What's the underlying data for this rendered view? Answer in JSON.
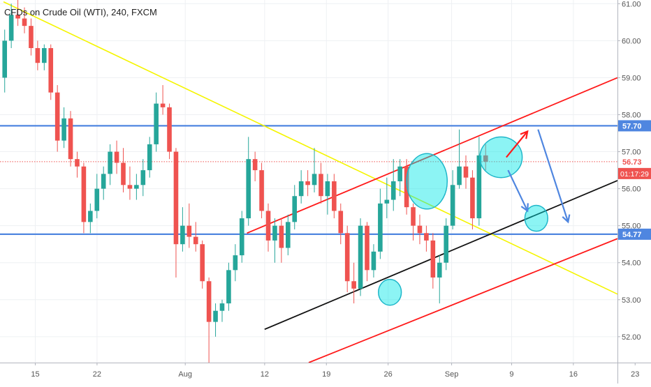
{
  "chart_data": {
    "type": "candlestick",
    "title": "CFDs on Crude Oil (WTI), 240, FXCM",
    "ylim": [
      51.3,
      61.1
    ],
    "xlim": [
      -2,
      33
    ],
    "y_ticks": [
      "52.00",
      "53.00",
      "54.00",
      "55.00",
      "56.00",
      "57.00",
      "58.00",
      "59.00",
      "60.00",
      "61.00"
    ],
    "y_tick_values": [
      52,
      53,
      54,
      55,
      56,
      57,
      58,
      59,
      60,
      61
    ],
    "x_ticks": [
      {
        "label": "15",
        "x": 0
      },
      {
        "label": "22",
        "x": 3.5
      },
      {
        "label": "Aug",
        "x": 8.5
      },
      {
        "label": "12",
        "x": 13
      },
      {
        "label": "19",
        "x": 16.5
      },
      {
        "label": "26",
        "x": 20
      },
      {
        "label": "Sep",
        "x": 23.6
      },
      {
        "label": "9",
        "x": 27
      },
      {
        "label": "16",
        "x": 30.5
      },
      {
        "label": "23",
        "x": 34
      }
    ],
    "last_price": {
      "value": 56.73,
      "label": "56.73",
      "countdown": "01:17:29"
    },
    "horizontal_levels": [
      {
        "value": 57.7,
        "label": "57.70"
      },
      {
        "value": 54.77,
        "label": "54.77"
      }
    ],
    "candles": [
      {
        "o": 59.0,
        "h": 60.3,
        "l": 58.6,
        "c": 60.0
      },
      {
        "o": 60.0,
        "h": 61.0,
        "l": 59.8,
        "c": 60.7
      },
      {
        "o": 60.7,
        "h": 61.1,
        "l": 60.4,
        "c": 60.6
      },
      {
        "o": 60.6,
        "h": 60.9,
        "l": 60.2,
        "c": 60.4
      },
      {
        "o": 60.4,
        "h": 60.6,
        "l": 59.6,
        "c": 59.8
      },
      {
        "o": 59.8,
        "h": 60.0,
        "l": 59.2,
        "c": 59.4
      },
      {
        "o": 59.4,
        "h": 59.9,
        "l": 59.2,
        "c": 59.8
      },
      {
        "o": 59.8,
        "h": 59.9,
        "l": 58.4,
        "c": 58.6
      },
      {
        "o": 58.6,
        "h": 58.8,
        "l": 57.0,
        "c": 57.3
      },
      {
        "o": 57.3,
        "h": 58.2,
        "l": 57.1,
        "c": 57.9
      },
      {
        "o": 57.9,
        "h": 58.1,
        "l": 56.6,
        "c": 56.8
      },
      {
        "o": 56.8,
        "h": 57.0,
        "l": 56.3,
        "c": 56.6
      },
      {
        "o": 56.6,
        "h": 56.7,
        "l": 54.8,
        "c": 55.1
      },
      {
        "o": 55.1,
        "h": 55.6,
        "l": 54.8,
        "c": 55.4
      },
      {
        "o": 55.4,
        "h": 56.4,
        "l": 55.2,
        "c": 56.0
      },
      {
        "o": 56.0,
        "h": 56.6,
        "l": 55.7,
        "c": 56.4
      },
      {
        "o": 56.4,
        "h": 57.2,
        "l": 56.1,
        "c": 57.0
      },
      {
        "o": 57.0,
        "h": 57.3,
        "l": 56.4,
        "c": 56.7
      },
      {
        "o": 56.7,
        "h": 57.1,
        "l": 55.9,
        "c": 56.1
      },
      {
        "o": 56.1,
        "h": 56.6,
        "l": 55.7,
        "c": 56.0
      },
      {
        "o": 56.0,
        "h": 56.4,
        "l": 55.7,
        "c": 56.1
      },
      {
        "o": 56.1,
        "h": 56.8,
        "l": 55.8,
        "c": 56.5
      },
      {
        "o": 56.5,
        "h": 57.4,
        "l": 56.3,
        "c": 57.2
      },
      {
        "o": 57.2,
        "h": 58.6,
        "l": 57.0,
        "c": 58.3
      },
      {
        "o": 58.3,
        "h": 58.8,
        "l": 58.0,
        "c": 58.2
      },
      {
        "o": 58.2,
        "h": 58.3,
        "l": 56.8,
        "c": 57.0
      },
      {
        "o": 57.0,
        "h": 57.1,
        "l": 53.6,
        "c": 54.5
      },
      {
        "o": 54.5,
        "h": 55.5,
        "l": 54.3,
        "c": 55.0
      },
      {
        "o": 55.0,
        "h": 55.6,
        "l": 54.4,
        "c": 54.7
      },
      {
        "o": 54.7,
        "h": 55.1,
        "l": 54.3,
        "c": 54.5
      },
      {
        "o": 54.5,
        "h": 54.6,
        "l": 53.3,
        "c": 53.5
      },
      {
        "o": 53.5,
        "h": 53.6,
        "l": 51.3,
        "c": 52.4
      },
      {
        "o": 52.4,
        "h": 52.9,
        "l": 52.0,
        "c": 52.7
      },
      {
        "o": 52.7,
        "h": 53.0,
        "l": 52.4,
        "c": 52.9
      },
      {
        "o": 52.9,
        "h": 54.0,
        "l": 52.7,
        "c": 53.8
      },
      {
        "o": 53.8,
        "h": 54.5,
        "l": 53.5,
        "c": 54.2
      },
      {
        "o": 54.2,
        "h": 55.4,
        "l": 54.0,
        "c": 55.2
      },
      {
        "o": 55.2,
        "h": 57.4,
        "l": 55.0,
        "c": 56.8
      },
      {
        "o": 56.8,
        "h": 57.0,
        "l": 56.2,
        "c": 56.5
      },
      {
        "o": 56.5,
        "h": 56.7,
        "l": 55.2,
        "c": 55.4
      },
      {
        "o": 55.4,
        "h": 55.6,
        "l": 54.3,
        "c": 54.6
      },
      {
        "o": 54.6,
        "h": 55.2,
        "l": 54.0,
        "c": 55.0
      },
      {
        "o": 55.0,
        "h": 55.2,
        "l": 54.0,
        "c": 54.4
      },
      {
        "o": 54.4,
        "h": 55.3,
        "l": 54.2,
        "c": 55.1
      },
      {
        "o": 55.1,
        "h": 56.1,
        "l": 54.9,
        "c": 55.8
      },
      {
        "o": 55.8,
        "h": 56.5,
        "l": 55.6,
        "c": 56.2
      },
      {
        "o": 56.2,
        "h": 56.5,
        "l": 55.8,
        "c": 56.1
      },
      {
        "o": 56.1,
        "h": 57.1,
        "l": 55.9,
        "c": 56.4
      },
      {
        "o": 56.4,
        "h": 56.7,
        "l": 55.6,
        "c": 55.8
      },
      {
        "o": 55.8,
        "h": 56.4,
        "l": 55.3,
        "c": 56.2
      },
      {
        "o": 56.2,
        "h": 56.4,
        "l": 55.2,
        "c": 55.4
      },
      {
        "o": 55.4,
        "h": 55.6,
        "l": 54.5,
        "c": 54.8
      },
      {
        "o": 54.8,
        "h": 55.0,
        "l": 53.2,
        "c": 53.5
      },
      {
        "o": 53.5,
        "h": 54.0,
        "l": 52.9,
        "c": 53.3
      },
      {
        "o": 53.3,
        "h": 55.2,
        "l": 53.1,
        "c": 55.0
      },
      {
        "o": 55.0,
        "h": 55.1,
        "l": 53.5,
        "c": 53.8
      },
      {
        "o": 53.8,
        "h": 54.5,
        "l": 53.6,
        "c": 54.3
      },
      {
        "o": 54.3,
        "h": 56.0,
        "l": 54.1,
        "c": 55.6
      },
      {
        "o": 55.6,
        "h": 56.3,
        "l": 55.2,
        "c": 55.7
      },
      {
        "o": 55.7,
        "h": 56.8,
        "l": 55.4,
        "c": 56.2
      },
      {
        "o": 56.2,
        "h": 56.8,
        "l": 55.8,
        "c": 56.6
      },
      {
        "o": 56.6,
        "h": 56.8,
        "l": 55.3,
        "c": 55.5
      },
      {
        "o": 55.5,
        "h": 55.6,
        "l": 54.6,
        "c": 55.0
      },
      {
        "o": 55.0,
        "h": 55.3,
        "l": 54.5,
        "c": 54.8
      },
      {
        "o": 54.8,
        "h": 55.0,
        "l": 54.3,
        "c": 54.6
      },
      {
        "o": 54.6,
        "h": 54.8,
        "l": 53.3,
        "c": 53.6
      },
      {
        "o": 53.6,
        "h": 54.2,
        "l": 52.9,
        "c": 54.0
      },
      {
        "o": 54.0,
        "h": 55.2,
        "l": 53.8,
        "c": 55.0
      },
      {
        "o": 55.0,
        "h": 56.5,
        "l": 54.9,
        "c": 56.1
      },
      {
        "o": 56.1,
        "h": 57.6,
        "l": 56.0,
        "c": 56.6
      },
      {
        "o": 56.6,
        "h": 56.9,
        "l": 56.0,
        "c": 56.3
      },
      {
        "o": 56.3,
        "h": 56.5,
        "l": 54.9,
        "c": 55.2
      },
      {
        "o": 55.2,
        "h": 57.4,
        "l": 55.0,
        "c": 56.9
      },
      {
        "o": 56.9,
        "h": 57.2,
        "l": 56.5,
        "c": 56.73
      }
    ],
    "trend_lines": [
      {
        "name": "yellow",
        "color": "#f5f500",
        "width": 1.6,
        "points": [
          [
            -1.8,
            61.05
          ],
          [
            33,
            53.15
          ]
        ]
      },
      {
        "name": "red-upper",
        "color": "#ff1a1a",
        "width": 1.8,
        "points": [
          [
            12,
            54.8
          ],
          [
            33,
            59.0
          ]
        ]
      },
      {
        "name": "red-lower",
        "color": "#ff1a1a",
        "width": 1.8,
        "points": [
          [
            15.5,
            51.3
          ],
          [
            33,
            54.65
          ]
        ]
      },
      {
        "name": "black-support",
        "color": "#111111",
        "width": 1.8,
        "points": [
          [
            13,
            52.2
          ],
          [
            33,
            56.22
          ]
        ]
      }
    ],
    "ellipses": [
      {
        "cx": 20.1,
        "cy": 53.2,
        "rx": 0.65,
        "ry": 0.35
      },
      {
        "cx": 22.2,
        "cy": 56.2,
        "rx": 1.15,
        "ry": 0.75
      },
      {
        "cx": 26.4,
        "cy": 56.85,
        "rx": 1.2,
        "ry": 0.55
      },
      {
        "cx": 28.4,
        "cy": 55.2,
        "rx": 0.65,
        "ry": 0.35
      }
    ],
    "arrows": [
      {
        "color": "#ff1a1a",
        "from": [
          26.7,
          56.85
        ],
        "to": [
          27.9,
          57.55
        ]
      },
      {
        "color": "#4f86e0",
        "from": [
          26.8,
          56.5
        ],
        "to": [
          27.9,
          55.4
        ]
      },
      {
        "color": "#4f86e0",
        "from": [
          28.5,
          57.6
        ],
        "to": [
          30.2,
          55.1
        ]
      }
    ]
  }
}
